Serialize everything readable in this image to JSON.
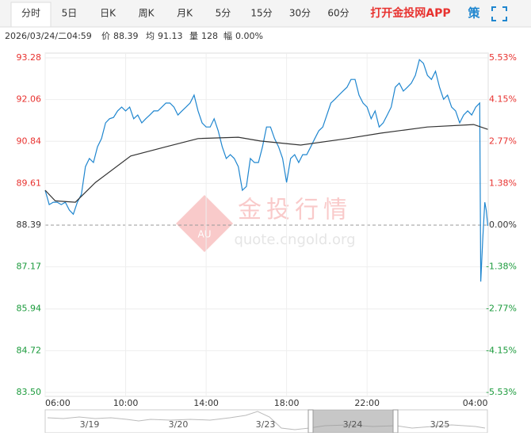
{
  "toolbar": {
    "tabs": [
      "分时",
      "5日",
      "日K",
      "周K",
      "月K",
      "5分",
      "15分",
      "30分",
      "60分"
    ],
    "app_link": "打开金投网APP",
    "strategy_icon": "策"
  },
  "header": {
    "datetime": "2026/03/24/二04:59",
    "price_label": "价",
    "price": "88.39",
    "avg_label": "均",
    "avg": "91.13",
    "volume_label": "量",
    "volume": "128",
    "change_label": "幅",
    "change": "0.00%"
  },
  "watermark": {
    "title": "金投行情",
    "url": "quote.cngold.org",
    "logo": "AU"
  },
  "navigator": {
    "dates": [
      "3/19",
      "3/20",
      "3/23",
      "3/24",
      "3/25"
    ]
  },
  "chart_data": {
    "type": "line",
    "base": 88.39,
    "colors": {
      "up": "#e8322f",
      "down": "#1a9a3b",
      "flat": "#333333"
    },
    "grid": true,
    "xlim": [
      0,
      22
    ],
    "xticks": [
      {
        "value": 0,
        "label": "06:00"
      },
      {
        "value": 4,
        "label": "10:00"
      },
      {
        "value": 8,
        "label": "14:00"
      },
      {
        "value": 12,
        "label": "18:00"
      },
      {
        "value": 16,
        "label": "22:00"
      },
      {
        "value": 22,
        "label": "04:00"
      }
    ],
    "ylim": [
      83.5,
      93.28
    ],
    "yticks": [
      93.28,
      92.06,
      90.84,
      89.61,
      88.39,
      87.17,
      85.94,
      84.72,
      {
        "value": 83.5,
        "label": "83.50"
      }
    ],
    "y2lim": [
      -5.53,
      5.53
    ],
    "y2ticks": [
      {
        "value": 5.53,
        "label": "5.53%"
      },
      {
        "value": 4.15,
        "label": "4.15%"
      },
      {
        "value": 2.77,
        "label": "2.77%"
      },
      {
        "value": 1.38,
        "label": "1.38%"
      },
      {
        "value": 0,
        "label": "0.00%"
      },
      {
        "value": -1.38,
        "label": "-1.38%"
      },
      {
        "value": -2.77,
        "label": "-2.77%"
      },
      {
        "value": -4.15,
        "label": "-4.15%"
      },
      {
        "value": -5.53,
        "label": "-5.53%"
      }
    ],
    "series": [
      {
        "color": "#1f86cf",
        "x": [
          0,
          0.2,
          0.4,
          0.6,
          0.8,
          1,
          1.2,
          1.4,
          1.6,
          1.8,
          2,
          2.2,
          2.4,
          2.6,
          2.8,
          3,
          3.2,
          3.4,
          3.6,
          3.8,
          4,
          4.2,
          4.4,
          4.6,
          4.8,
          5,
          5.2,
          5.4,
          5.6,
          5.8,
          6,
          6.2,
          6.4,
          6.6,
          6.8,
          7,
          7.2,
          7.4,
          7.6,
          7.8,
          8,
          8.2,
          8.4,
          8.6,
          8.8,
          9,
          9.2,
          9.4,
          9.6,
          9.8,
          10,
          10.2,
          10.4,
          10.6,
          10.8,
          11,
          11.2,
          11.4,
          11.6,
          11.8,
          12,
          12.2,
          12.4,
          12.6,
          12.8,
          13,
          13.2,
          13.4,
          13.6,
          13.8,
          14,
          14.2,
          14.4,
          14.6,
          14.8,
          15,
          15.2,
          15.4,
          15.6,
          15.8,
          16,
          16.2,
          16.4,
          16.6,
          16.8,
          17,
          17.2,
          17.4,
          17.6,
          17.8,
          18,
          18.2,
          18.4,
          18.6,
          18.8,
          19,
          19.2,
          19.4,
          19.6,
          19.8,
          20,
          20.2,
          20.4,
          20.6,
          20.8,
          21,
          21.2,
          21.4,
          21.6,
          21.65,
          21.75,
          21.85,
          21.92,
          22
        ],
        "values": [
          89.41,
          88.99,
          89.06,
          89.06,
          88.99,
          89.06,
          88.83,
          88.71,
          89.06,
          89.29,
          90.1,
          90.34,
          90.22,
          90.68,
          90.92,
          91.38,
          91.5,
          91.54,
          91.73,
          91.84,
          91.73,
          91.84,
          91.5,
          91.61,
          91.38,
          91.5,
          91.61,
          91.73,
          91.73,
          91.84,
          91.96,
          91.96,
          91.84,
          91.61,
          91.73,
          91.84,
          91.96,
          92.19,
          91.73,
          91.38,
          91.26,
          91.26,
          91.5,
          91.15,
          90.68,
          90.34,
          90.45,
          90.34,
          90.1,
          89.41,
          89.52,
          90.34,
          90.22,
          90.22,
          90.68,
          91.26,
          91.26,
          90.92,
          90.68,
          90.34,
          89.64,
          90.34,
          90.45,
          90.22,
          90.45,
          90.45,
          90.68,
          90.92,
          91.15,
          91.26,
          91.61,
          91.96,
          92.07,
          92.19,
          92.31,
          92.42,
          92.65,
          92.65,
          92.19,
          91.96,
          91.84,
          91.5,
          91.73,
          91.26,
          91.38,
          91.61,
          91.84,
          92.42,
          92.54,
          92.31,
          92.42,
          92.54,
          92.77,
          93.23,
          93.12,
          92.77,
          92.65,
          92.89,
          92.42,
          92.07,
          92.19,
          91.84,
          91.73,
          91.38,
          91.61,
          91.73,
          91.61,
          91.84,
          91.96,
          86.74,
          88.02,
          89.06,
          88.83,
          88.37
        ]
      },
      {
        "color": "#333333",
        "x": [
          0,
          0.5,
          1.5,
          2.5,
          4.25,
          6,
          7.6,
          9.6,
          10.7,
          12.7,
          15,
          16.7,
          19,
          21.3,
          22
        ],
        "values": [
          89.41,
          89.1,
          89.06,
          89.64,
          90.41,
          90.68,
          90.92,
          90.96,
          90.85,
          90.73,
          90.92,
          91.08,
          91.26,
          91.33,
          91.19
        ]
      }
    ]
  }
}
